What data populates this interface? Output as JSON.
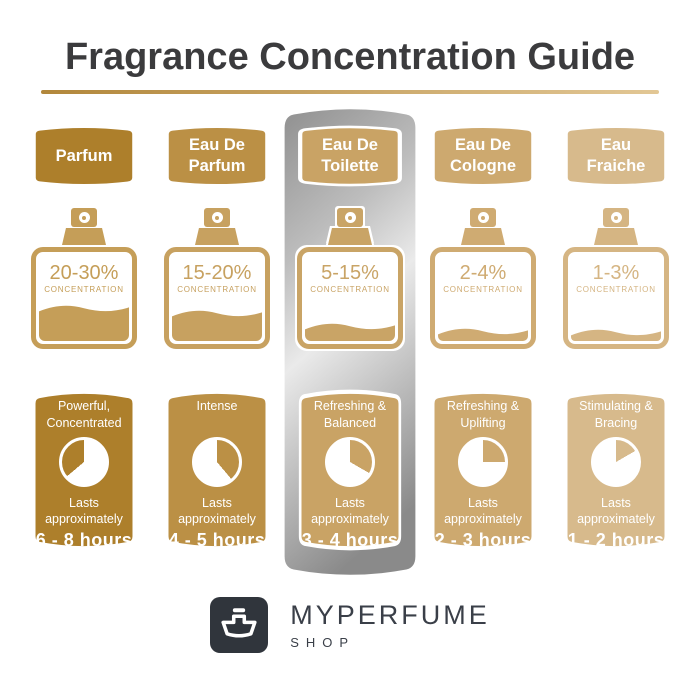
{
  "title": "Fragrance Concentration Guide",
  "shared": {
    "concentration_label": "CONCENTRATION",
    "lasts_label": "Lasts approximately"
  },
  "columns": [
    {
      "name": "Parfum",
      "concentration": "20-30%",
      "character": "Powerful,\nConcentrated",
      "duration": "6 - 8 hours",
      "fill_percent": 30,
      "clock_wedge": {
        "start": 230,
        "end": 360
      },
      "accent_color": "#ad7f2b",
      "bottle_color": "#c59e58",
      "highlighted": false
    },
    {
      "name": "Eau De\nParfum",
      "concentration": "15-20%",
      "character": "Intense",
      "duration": "4 - 5 hours",
      "fill_percent": 25,
      "clock_wedge": {
        "start": 0,
        "end": 140
      },
      "accent_color": "#bb9045",
      "bottle_color": "#c7a160",
      "highlighted": false
    },
    {
      "name": "Eau De\nToilette",
      "concentration": "5-15%",
      "character": "Refreshing &\nBalanced",
      "duration": "3 - 4 hours",
      "fill_percent": 11,
      "clock_wedge": {
        "start": 0,
        "end": 120
      },
      "accent_color": "#c9a365",
      "bottle_color": "#c9a466",
      "highlighted": true
    },
    {
      "name": "Eau De\nCologne",
      "concentration": "2-4%",
      "character": "Refreshing &\nUplifting",
      "duration": "2 - 3 hours",
      "fill_percent": 5,
      "clock_wedge": {
        "start": 0,
        "end": 90
      },
      "accent_color": "#cda96f",
      "bottle_color": "#cfab72",
      "highlighted": false
    },
    {
      "name": "Eau\nFraiche",
      "concentration": "1-3%",
      "character": "Stimulating &\nBracing",
      "duration": "1 - 2 hours",
      "fill_percent": 4,
      "clock_wedge": {
        "start": 0,
        "end": 60
      },
      "accent_color": "#d7ba8c",
      "bottle_color": "#d5b583",
      "highlighted": false
    }
  ],
  "footer": {
    "brand": "MYPERFUME",
    "sub": "SHOP"
  },
  "theme": {
    "title_color": "#3b3b3d",
    "underline_from": "#b2873b",
    "underline_to": "#e2c795",
    "logo_bg": "#30353c",
    "brand_color": "#3a3f48",
    "silver_top": "#959595",
    "silver_mid": "#eaeaea",
    "silver_bottom": "#8a8a8a"
  }
}
